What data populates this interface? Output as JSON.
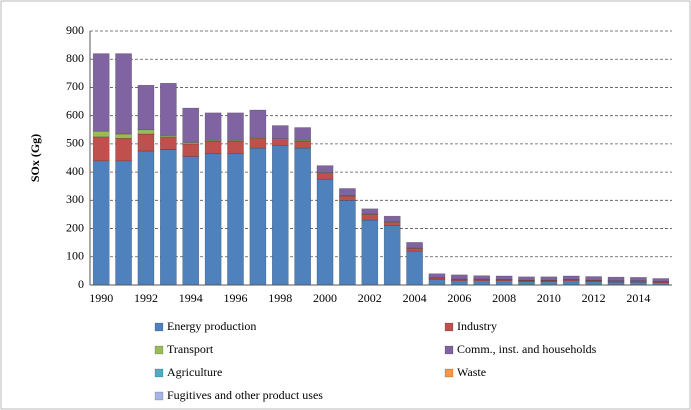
{
  "chart_data": {
    "type": "stacked_bar",
    "y_label": "SOx (Gg)",
    "categories": [
      "1990",
      null,
      "1992",
      null,
      "1994",
      null,
      "1996",
      null,
      "1998",
      null,
      "2000",
      null,
      "2002",
      null,
      "2004",
      null,
      "2006",
      null,
      "2008",
      null,
      "2010",
      null,
      "2012",
      null,
      "2014",
      null
    ],
    "series": [
      {
        "name": "Energy production",
        "color": "#4f81bd",
        "values": [
          440,
          440,
          475,
          480,
          455,
          465,
          465,
          485,
          495,
          485,
          375,
          300,
          230,
          210,
          120,
          20,
          15,
          15,
          15,
          12,
          12,
          15,
          12,
          10,
          10,
          8
        ]
      },
      {
        "name": "Industry",
        "color": "#c0504d",
        "values": [
          85,
          80,
          60,
          45,
          45,
          45,
          45,
          35,
          20,
          25,
          20,
          15,
          20,
          12,
          10,
          5,
          5,
          5,
          4,
          4,
          4,
          4,
          4,
          4,
          4,
          4
        ]
      },
      {
        "name": "Transport",
        "color": "#9bbb59",
        "values": [
          20,
          15,
          15,
          5,
          5,
          3,
          3,
          3,
          3,
          3,
          3,
          2,
          2,
          2,
          1,
          1,
          1,
          1,
          1,
          1,
          1,
          1,
          1,
          1,
          1,
          1
        ]
      },
      {
        "name": "Comm., inst. and households",
        "color": "#8064a2",
        "values": [
          275,
          285,
          158,
          185,
          122,
          97,
          97,
          97,
          47,
          45,
          25,
          25,
          18,
          20,
          20,
          14,
          15,
          12,
          12,
          12,
          12,
          12,
          13,
          13,
          12,
          10
        ]
      },
      {
        "name": "Agriculture",
        "color": "#4bacc6",
        "values": [
          0,
          0,
          0,
          0,
          0,
          0,
          0,
          0,
          0,
          0,
          0,
          0,
          0,
          0,
          0,
          0,
          0,
          0,
          0,
          0,
          0,
          0,
          0,
          0,
          0,
          0
        ]
      },
      {
        "name": "Waste",
        "color": "#f79646",
        "values": [
          0,
          0,
          0,
          0,
          0,
          0,
          0,
          0,
          0,
          0,
          0,
          0,
          0,
          0,
          0,
          0,
          0,
          0,
          0,
          0,
          0,
          0,
          0,
          0,
          0,
          0
        ]
      },
      {
        "name": "Fugitives and other product uses",
        "color": "#a5b6e6",
        "values": [
          0,
          0,
          0,
          0,
          0,
          0,
          0,
          0,
          0,
          0,
          0,
          0,
          0,
          0,
          0,
          0,
          0,
          0,
          0,
          0,
          0,
          0,
          0,
          0,
          0,
          0
        ]
      }
    ],
    "ylim": [
      0,
      900
    ],
    "yticks": [
      0,
      100,
      200,
      300,
      400,
      500,
      600,
      700,
      800,
      900
    ],
    "grid": true
  }
}
